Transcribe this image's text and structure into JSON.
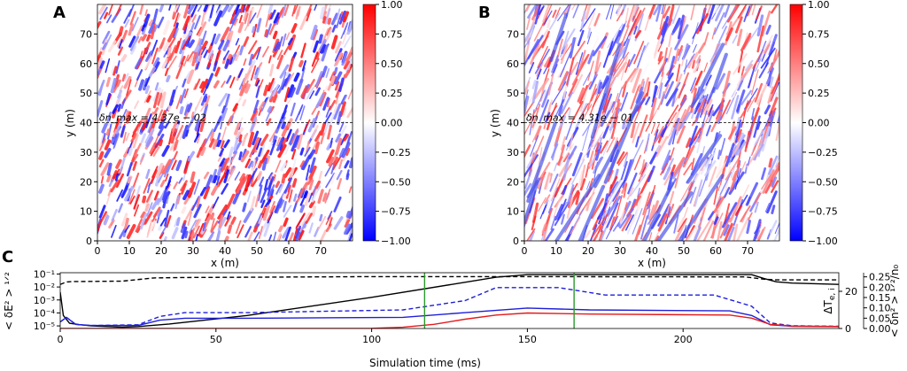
{
  "figure": {
    "description": "Three-panel simulation figure"
  },
  "chart_data": [
    {
      "panel": "A",
      "type": "heatmap",
      "xlabel": "x (m)",
      "ylabel": "y (m)",
      "xlim": [
        0,
        80
      ],
      "ylim": [
        0,
        80
      ],
      "xticks": [
        0,
        10,
        20,
        30,
        40,
        50,
        60,
        70
      ],
      "yticks": [
        0,
        10,
        20,
        30,
        40,
        50,
        60,
        70
      ],
      "annotation": "δn_max = 4.37e − 02",
      "annotation_y": 40,
      "colorbar": {
        "min": -1.0,
        "max": 1.0,
        "ticks": [
          "−1.00",
          "−0.75",
          "−0.50",
          "−0.25",
          "0.00",
          "0.25",
          "0.50",
          "0.75",
          "1.00"
        ],
        "cmap": "bwr"
      }
    },
    {
      "panel": "B",
      "type": "heatmap",
      "xlabel": "x (m)",
      "ylabel": "y (m)",
      "xlim": [
        0,
        80
      ],
      "ylim": [
        0,
        80
      ],
      "xticks": [
        0,
        10,
        20,
        30,
        40,
        50,
        60,
        70
      ],
      "yticks": [
        0,
        10,
        20,
        30,
        40,
        50,
        60,
        70
      ],
      "annotation": "δn_max = 4.31e − 01",
      "annotation_y": 40,
      "colorbar": {
        "min": -1.0,
        "max": 1.0,
        "ticks": [
          "−1.00",
          "−0.75",
          "−0.50",
          "−0.25",
          "0.00",
          "0.25",
          "0.50",
          "0.75",
          "1.00"
        ],
        "cmap": "bwr"
      }
    },
    {
      "panel": "C",
      "type": "line",
      "xlabel": "Simulation time (ms)",
      "xlim": [
        0,
        250
      ],
      "xticks": [
        0,
        50,
        100,
        150,
        200
      ],
      "left_axis": {
        "label": "< δE² > ^1/2",
        "scale": "log",
        "ticks": [
          "10⁻⁵",
          "10⁻⁴",
          "10⁻³",
          "10⁻²",
          "10⁻¹"
        ],
        "range_log10": [
          -5.2,
          -0.9
        ]
      },
      "right_axis_1": {
        "label": "ΔT_e,i",
        "ticks": [
          0,
          20
        ],
        "range": [
          0,
          30
        ],
        "color": "#1f1fd8"
      },
      "right_axis_2": {
        "label": "< δn² > ^1/2 / n₀",
        "ticks": [
          "0.00",
          "0.05",
          "0.10",
          "0.15",
          "0.20",
          "0.25"
        ],
        "range": [
          0,
          0.27
        ],
        "color": "#e31a1c"
      },
      "vlines": [
        117,
        165
      ],
      "series": [
        {
          "name": "dE solid",
          "axis": "left",
          "color": "#000000",
          "dash": false,
          "x": [
            0,
            1,
            3,
            6,
            10,
            20,
            25,
            35,
            60,
            100,
            140,
            150,
            222,
            226,
            230,
            235,
            250
          ],
          "y": [
            -2.4,
            -4.2,
            -4.8,
            -4.9,
            -5.0,
            -5.1,
            -5.05,
            -4.85,
            -4.2,
            -2.8,
            -1.25,
            -1.05,
            -1.05,
            -1.35,
            -1.6,
            -1.7,
            -1.8
          ]
        },
        {
          "name": "dE dashed",
          "axis": "left",
          "color": "#000000",
          "dash": true,
          "x": [
            0,
            2,
            4,
            10,
            20,
            30,
            40,
            60,
            100,
            150,
            220,
            226,
            230,
            250
          ],
          "y": [
            -1.8,
            -1.62,
            -1.58,
            -1.57,
            -1.55,
            -1.3,
            -1.27,
            -1.25,
            -1.2,
            -1.2,
            -1.22,
            -1.4,
            -1.45,
            -1.45
          ]
        },
        {
          "name": "dT solid",
          "axis": "right1",
          "color": "#1f1fd8",
          "dash": false,
          "x": [
            0,
            2,
            5,
            10,
            25,
            32,
            40,
            60,
            110,
            130,
            150,
            170,
            215,
            222,
            228,
            235,
            250
          ],
          "y": [
            3.5,
            6,
            2.2,
            1.6,
            1.6,
            4.5,
            5.5,
            5.5,
            6,
            8.5,
            11,
            10,
            9.5,
            7,
            2,
            1.2,
            1.0
          ]
        },
        {
          "name": "dT dashed",
          "axis": "right1",
          "color": "#1f1fd8",
          "dash": true,
          "x": [
            0,
            2,
            5,
            10,
            25,
            32,
            40,
            60,
            110,
            130,
            140,
            160,
            175,
            210,
            222,
            228,
            235,
            250
          ],
          "y": [
            3.5,
            6,
            2.2,
            1.6,
            2,
            6.5,
            8.5,
            8.5,
            10,
            15,
            22,
            22,
            18,
            18,
            12,
            3,
            1.5,
            1.2
          ]
        },
        {
          "name": "dn solid",
          "axis": "right2",
          "color": "#e31a1c",
          "dash": false,
          "x": [
            0,
            80,
            100,
            110,
            120,
            130,
            140,
            150,
            170,
            215,
            222,
            228,
            235,
            250
          ],
          "y": [
            0,
            0,
            0.001,
            0.006,
            0.02,
            0.045,
            0.065,
            0.075,
            0.07,
            0.065,
            0.05,
            0.02,
            0.012,
            0.01
          ]
        }
      ]
    }
  ],
  "labels": {
    "A": "A",
    "B": "B",
    "C": "C",
    "x_label": "x (m)",
    "y_label": "y (m)",
    "time_label": "Simulation time (ms)",
    "dE_label": "< δE² > ¹ᐟ²",
    "dT_label": "ΔT",
    "dT_sub": "e, i",
    "dn_label": "< δn² > ¹ᐟ²/n₀"
  }
}
